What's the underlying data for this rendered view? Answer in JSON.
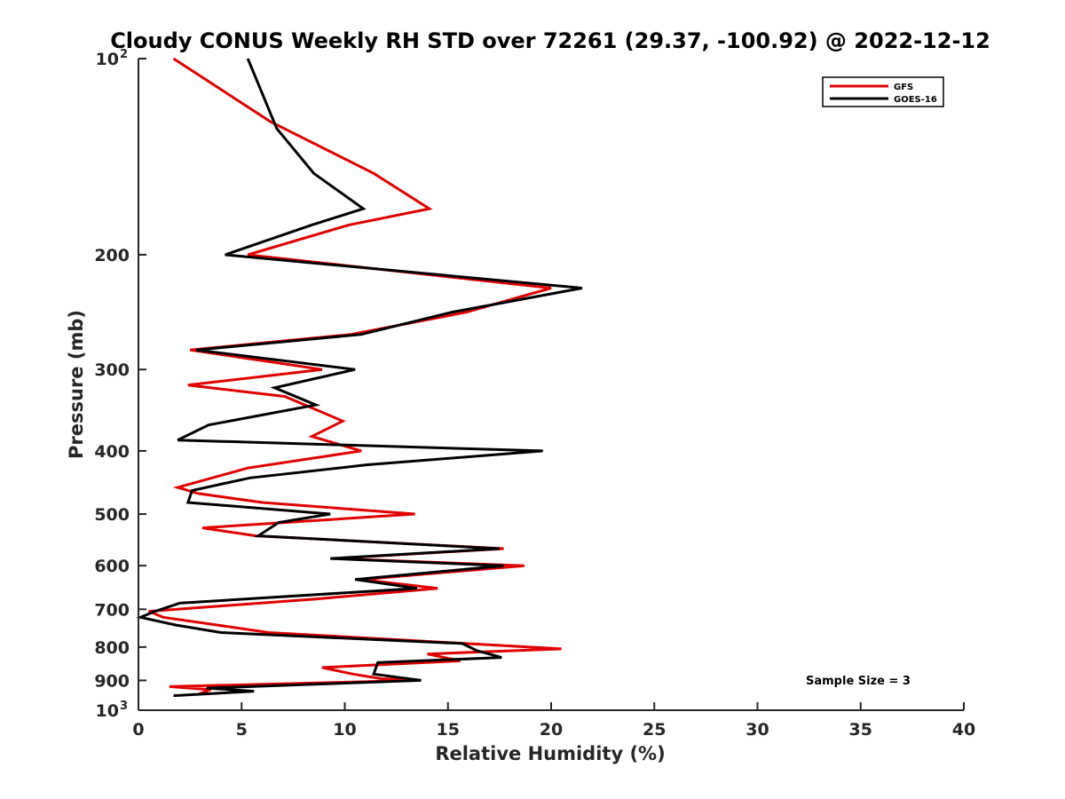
{
  "chart_data": {
    "type": "line",
    "title": "Cloudy CONUS Weekly RH STD over 72261 (29.37, -100.92) @ 2022-12-12",
    "xlabel": "Relative Humidity (%)",
    "ylabel": "Pressure (mb)",
    "xlim": [
      0,
      40
    ],
    "ylim": [
      100,
      1000
    ],
    "y_scale": "log",
    "y_reversed": true,
    "x_ticks": [
      "0",
      "5",
      "10",
      "15",
      "20",
      "25",
      "30",
      "35",
      "40"
    ],
    "y_ticks": [
      {
        "value": 100,
        "label": "10",
        "sup": "2"
      },
      {
        "value": 200,
        "label": "200"
      },
      {
        "value": 300,
        "label": "300"
      },
      {
        "value": 400,
        "label": "400"
      },
      {
        "value": 500,
        "label": "500"
      },
      {
        "value": 600,
        "label": "600"
      },
      {
        "value": 700,
        "label": "700"
      },
      {
        "value": 800,
        "label": "800"
      },
      {
        "value": 900,
        "label": "900"
      },
      {
        "value": 1000,
        "label": "10",
        "sup": "3"
      }
    ],
    "grid": false,
    "legend_position": "top-right",
    "series": [
      {
        "name": "GFS",
        "color": "#e00000",
        "points": [
          [
            1.7,
            100
          ],
          [
            6.4,
            125
          ],
          [
            11.4,
            150
          ],
          [
            14.1,
            170
          ],
          [
            10.2,
            180
          ],
          [
            5.3,
            200
          ],
          [
            20.0,
            225
          ],
          [
            15.9,
            245
          ],
          [
            10.3,
            265
          ],
          [
            2.5,
            280
          ],
          [
            8.9,
            300
          ],
          [
            2.4,
            317
          ],
          [
            7.1,
            330
          ],
          [
            9.9,
            360
          ],
          [
            8.4,
            380
          ],
          [
            10.8,
            400
          ],
          [
            5.3,
            425
          ],
          [
            1.9,
            455
          ],
          [
            2.9,
            465
          ],
          [
            6.0,
            480
          ],
          [
            13.4,
            500
          ],
          [
            3.1,
            525
          ],
          [
            5.7,
            540
          ],
          [
            17.7,
            565
          ],
          [
            9.5,
            585
          ],
          [
            18.7,
            600
          ],
          [
            10.8,
            630
          ],
          [
            14.5,
            650
          ],
          [
            8.6,
            675
          ],
          [
            0.5,
            705
          ],
          [
            1.2,
            720
          ],
          [
            3.8,
            740
          ],
          [
            6.3,
            760
          ],
          [
            15.9,
            790
          ],
          [
            20.5,
            805
          ],
          [
            14.0,
            820
          ],
          [
            15.6,
            840
          ],
          [
            8.9,
            860
          ],
          [
            10.4,
            880
          ],
          [
            11.8,
            895
          ],
          [
            13.5,
            900
          ],
          [
            1.5,
            920
          ],
          [
            3.5,
            930
          ],
          [
            2.9,
            945
          ]
        ]
      },
      {
        "name": "GOES-16",
        "color": "#000000",
        "points": [
          [
            5.3,
            100
          ],
          [
            6.7,
            128
          ],
          [
            8.5,
            150
          ],
          [
            10.9,
            170
          ],
          [
            8.4,
            180
          ],
          [
            4.2,
            200
          ],
          [
            21.5,
            225
          ],
          [
            15.2,
            245
          ],
          [
            10.8,
            265
          ],
          [
            2.8,
            280
          ],
          [
            10.5,
            300
          ],
          [
            6.6,
            320
          ],
          [
            8.6,
            340
          ],
          [
            3.4,
            365
          ],
          [
            1.9,
            385
          ],
          [
            19.6,
            400
          ],
          [
            11.1,
            420
          ],
          [
            5.4,
            440
          ],
          [
            2.6,
            460
          ],
          [
            2.4,
            480
          ],
          [
            9.3,
            500
          ],
          [
            6.8,
            515
          ],
          [
            5.8,
            540
          ],
          [
            17.5,
            565
          ],
          [
            9.3,
            585
          ],
          [
            17.7,
            600
          ],
          [
            10.5,
            630
          ],
          [
            12.0,
            640
          ],
          [
            13.5,
            650
          ],
          [
            2.0,
            685
          ],
          [
            0.8,
            705
          ],
          [
            0.1,
            720
          ],
          [
            1.8,
            740
          ],
          [
            4.0,
            760
          ],
          [
            15.7,
            790
          ],
          [
            16.4,
            810
          ],
          [
            17.6,
            830
          ],
          [
            11.6,
            845
          ],
          [
            11.4,
            880
          ],
          [
            13.7,
            900
          ],
          [
            3.3,
            925
          ],
          [
            5.6,
            935
          ],
          [
            1.7,
            950
          ]
        ]
      }
    ],
    "annotation": "Sample Size = 3"
  }
}
